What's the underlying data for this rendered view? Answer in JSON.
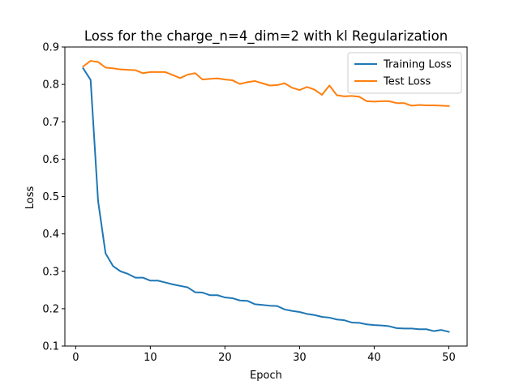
{
  "chart_data": {
    "type": "line",
    "title": "Loss for the charge_n=4_dim=2 with kl Regularization",
    "xlabel": "Epoch",
    "ylabel": "Loss",
    "xlim": [
      -1.45,
      52.45
    ],
    "ylim": [
      0.1,
      0.9
    ],
    "xticks": [
      0,
      10,
      20,
      30,
      40,
      50
    ],
    "yticks": [
      0.1,
      0.2,
      0.3,
      0.4,
      0.5,
      0.6,
      0.7,
      0.8,
      0.9
    ],
    "grid": false,
    "legend_position": "top-right",
    "x": [
      1,
      2,
      3,
      4,
      5,
      6,
      7,
      8,
      9,
      10,
      11,
      12,
      13,
      14,
      15,
      16,
      17,
      18,
      19,
      20,
      21,
      22,
      23,
      24,
      25,
      26,
      27,
      28,
      29,
      30,
      31,
      32,
      33,
      34,
      35,
      36,
      37,
      38,
      39,
      40,
      41,
      42,
      43,
      44,
      45,
      46,
      47,
      48,
      49,
      50
    ],
    "series": [
      {
        "name": "Training Loss",
        "color": "#1f77b4",
        "values": [
          0.843,
          0.812,
          0.488,
          0.348,
          0.314,
          0.3,
          0.293,
          0.283,
          0.283,
          0.275,
          0.275,
          0.27,
          0.265,
          0.261,
          0.257,
          0.244,
          0.243,
          0.236,
          0.236,
          0.23,
          0.228,
          0.222,
          0.221,
          0.212,
          0.21,
          0.208,
          0.207,
          0.198,
          0.194,
          0.191,
          0.186,
          0.183,
          0.178,
          0.176,
          0.171,
          0.169,
          0.163,
          0.162,
          0.158,
          0.156,
          0.155,
          0.153,
          0.148,
          0.147,
          0.147,
          0.145,
          0.145,
          0.14,
          0.143,
          0.138
        ]
      },
      {
        "name": "Test Loss",
        "color": "#ff7f0e",
        "values": [
          0.848,
          0.863,
          0.86,
          0.845,
          0.843,
          0.84,
          0.839,
          0.838,
          0.83,
          0.833,
          0.833,
          0.833,
          0.825,
          0.817,
          0.826,
          0.83,
          0.813,
          0.815,
          0.816,
          0.813,
          0.811,
          0.801,
          0.806,
          0.809,
          0.803,
          0.797,
          0.798,
          0.803,
          0.791,
          0.785,
          0.793,
          0.786,
          0.772,
          0.797,
          0.771,
          0.768,
          0.769,
          0.767,
          0.755,
          0.754,
          0.755,
          0.755,
          0.75,
          0.75,
          0.743,
          0.745,
          0.744,
          0.744,
          0.743,
          0.742
        ]
      }
    ]
  }
}
